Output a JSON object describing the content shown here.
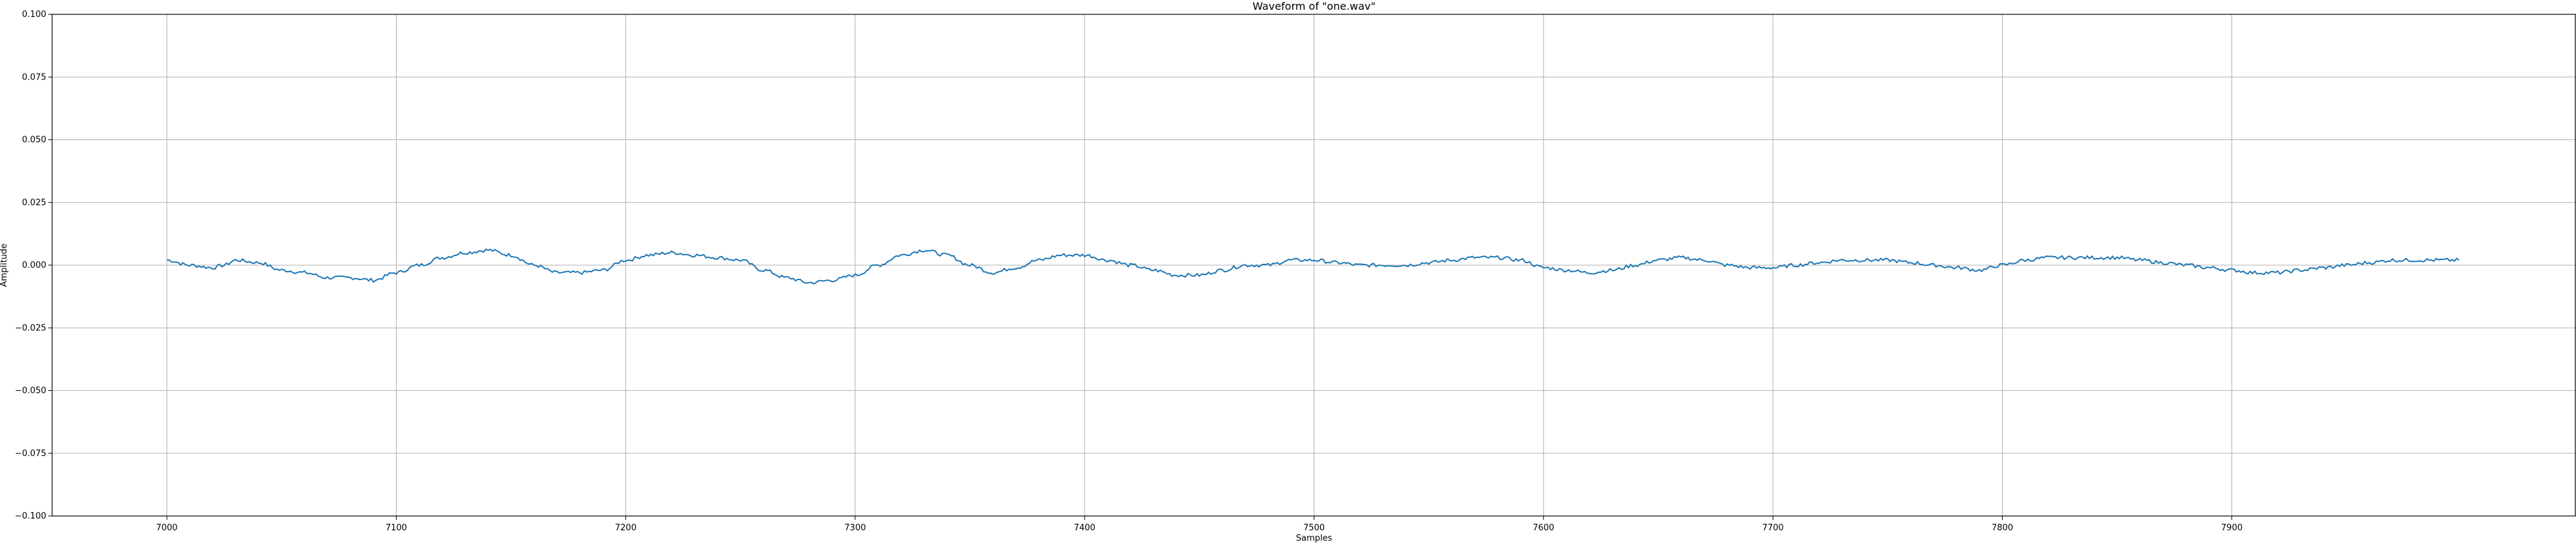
{
  "chart_data": {
    "type": "line",
    "title": "Waveform of \"one.wav\"",
    "xlabel": "Samples",
    "ylabel": "Amplitude",
    "xlim": [
      6950,
      8050
    ],
    "ylim": [
      -0.1,
      0.1
    ],
    "grid": true,
    "x_ticks": [
      7000,
      7100,
      7200,
      7300,
      7400,
      7500,
      7600,
      7700,
      7800,
      7900
    ],
    "y_ticks": [
      0.1,
      0.075,
      0.05,
      0.025,
      0.0,
      -0.025,
      -0.05,
      -0.075,
      -0.1
    ],
    "x_tick_labels": [
      "7000",
      "7100",
      "7200",
      "7300",
      "7400",
      "7500",
      "7600",
      "7700",
      "7800",
      "7900"
    ],
    "y_tick_labels": [
      "0.100",
      "0.075",
      "0.050",
      "0.025",
      "0.000",
      "−0.025",
      "−0.050",
      "−0.075",
      "−0.100"
    ],
    "line_color": "#1f77b4",
    "series": [
      {
        "x": [
          7000,
          7010,
          7020,
          7025,
          7030,
          7040,
          7050,
          7060,
          7070,
          7080,
          7090,
          7100,
          7110,
          7120,
          7130,
          7140,
          7150,
          7160,
          7170,
          7180,
          7190,
          7200,
          7210,
          7220,
          7230,
          7240,
          7250,
          7260,
          7270,
          7280,
          7290,
          7300,
          7310,
          7320,
          7330,
          7340,
          7350,
          7360,
          7370,
          7380,
          7390,
          7400,
          7410,
          7420,
          7430,
          7440,
          7450,
          7460,
          7470,
          7480,
          7490,
          7500,
          7510,
          7520,
          7530,
          7540,
          7550,
          7560,
          7570,
          7580,
          7590,
          7600,
          7610,
          7620,
          7630,
          7640,
          7650,
          7660,
          7670,
          7680,
          7690,
          7700,
          7710,
          7720,
          7730,
          7740,
          7750,
          7760,
          7770,
          7780,
          7790,
          7800,
          7810,
          7820,
          7830,
          7840,
          7850,
          7860,
          7870,
          7880,
          7890,
          7900,
          7910,
          7920,
          7930,
          7940,
          7950,
          7960,
          7970,
          7980,
          7990,
          7999
        ],
        "y": [
          0.002,
          0.0,
          -0.001,
          0.0,
          0.002,
          0.001,
          -0.002,
          -0.003,
          -0.005,
          -0.005,
          -0.006,
          -0.003,
          0.0,
          0.003,
          0.005,
          0.006,
          0.004,
          0.0,
          -0.003,
          -0.003,
          -0.002,
          0.002,
          0.004,
          0.005,
          0.004,
          0.003,
          0.002,
          -0.002,
          -0.005,
          -0.007,
          -0.006,
          -0.004,
          0.0,
          0.004,
          0.006,
          0.004,
          0.0,
          -0.003,
          -0.001,
          0.002,
          0.004,
          0.004,
          0.002,
          0.0,
          -0.002,
          -0.004,
          -0.004,
          -0.002,
          0.0,
          0.0,
          0.002,
          0.002,
          0.001,
          0.0,
          0.0,
          0.0,
          0.001,
          0.002,
          0.003,
          0.003,
          0.002,
          -0.001,
          -0.002,
          -0.003,
          -0.002,
          0.0,
          0.002,
          0.003,
          0.002,
          0.0,
          -0.001,
          -0.001,
          0.0,
          0.001,
          0.002,
          0.002,
          0.002,
          0.001,
          0.0,
          -0.001,
          -0.002,
          0.0,
          0.002,
          0.003,
          0.003,
          0.003,
          0.003,
          0.002,
          0.001,
          0.0,
          -0.001,
          -0.002,
          -0.003,
          -0.003,
          -0.002,
          -0.001,
          0.0,
          0.001,
          0.002,
          0.002,
          0.002,
          0.002
        ]
      }
    ]
  }
}
